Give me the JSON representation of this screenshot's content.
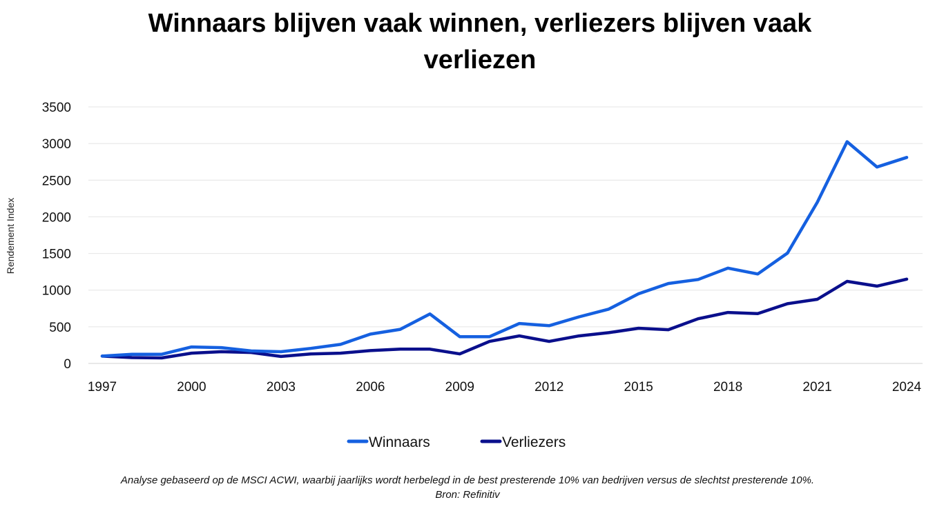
{
  "chart_data": {
    "type": "line",
    "title": "Winnaars blijven vaak winnen, verliezers blijven vaak verliezen",
    "ylabel": "Rendement Index",
    "xlabel": "",
    "ylim": [
      0,
      3500
    ],
    "yticks": [
      0,
      500,
      1000,
      1500,
      2000,
      2500,
      3000,
      3500
    ],
    "xtick_labels": [
      "1997",
      "2000",
      "2003",
      "2006",
      "2009",
      "2012",
      "2015",
      "2018",
      "2021",
      "2024"
    ],
    "x": [
      1997,
      1998,
      1999,
      2000,
      2001,
      2002,
      2003,
      2004,
      2005,
      2006,
      2007,
      2008,
      2009,
      2010,
      2011,
      2012,
      2013,
      2014,
      2015,
      2016,
      2017,
      2018,
      2019,
      2020,
      2021,
      2022,
      2023,
      2024
    ],
    "grid": true,
    "legend_position": "bottom",
    "series": [
      {
        "name": "Winnaars",
        "color": "#1560e0",
        "values": [
          100,
          125,
          125,
          225,
          215,
          170,
          160,
          205,
          260,
          400,
          465,
          675,
          365,
          365,
          545,
          515,
          635,
          740,
          950,
          1090,
          1145,
          1300,
          1220,
          1505,
          2200,
          3025,
          2680,
          2810
        ]
      },
      {
        "name": "Verliezers",
        "color": "#0a0f8c",
        "values": [
          100,
          80,
          75,
          140,
          160,
          150,
          95,
          130,
          140,
          175,
          195,
          195,
          130,
          300,
          375,
          300,
          375,
          420,
          480,
          460,
          610,
          695,
          680,
          815,
          875,
          1120,
          1055,
          1150
        ]
      }
    ]
  },
  "footnote": {
    "line1": "Analyse gebaseerd op de MSCI ACWI, waarbij jaarlijks wordt herbelegd in de best presterende 10% van bedrijven versus de slechtst presterende 10%.",
    "line2": "Bron: Refinitiv"
  }
}
